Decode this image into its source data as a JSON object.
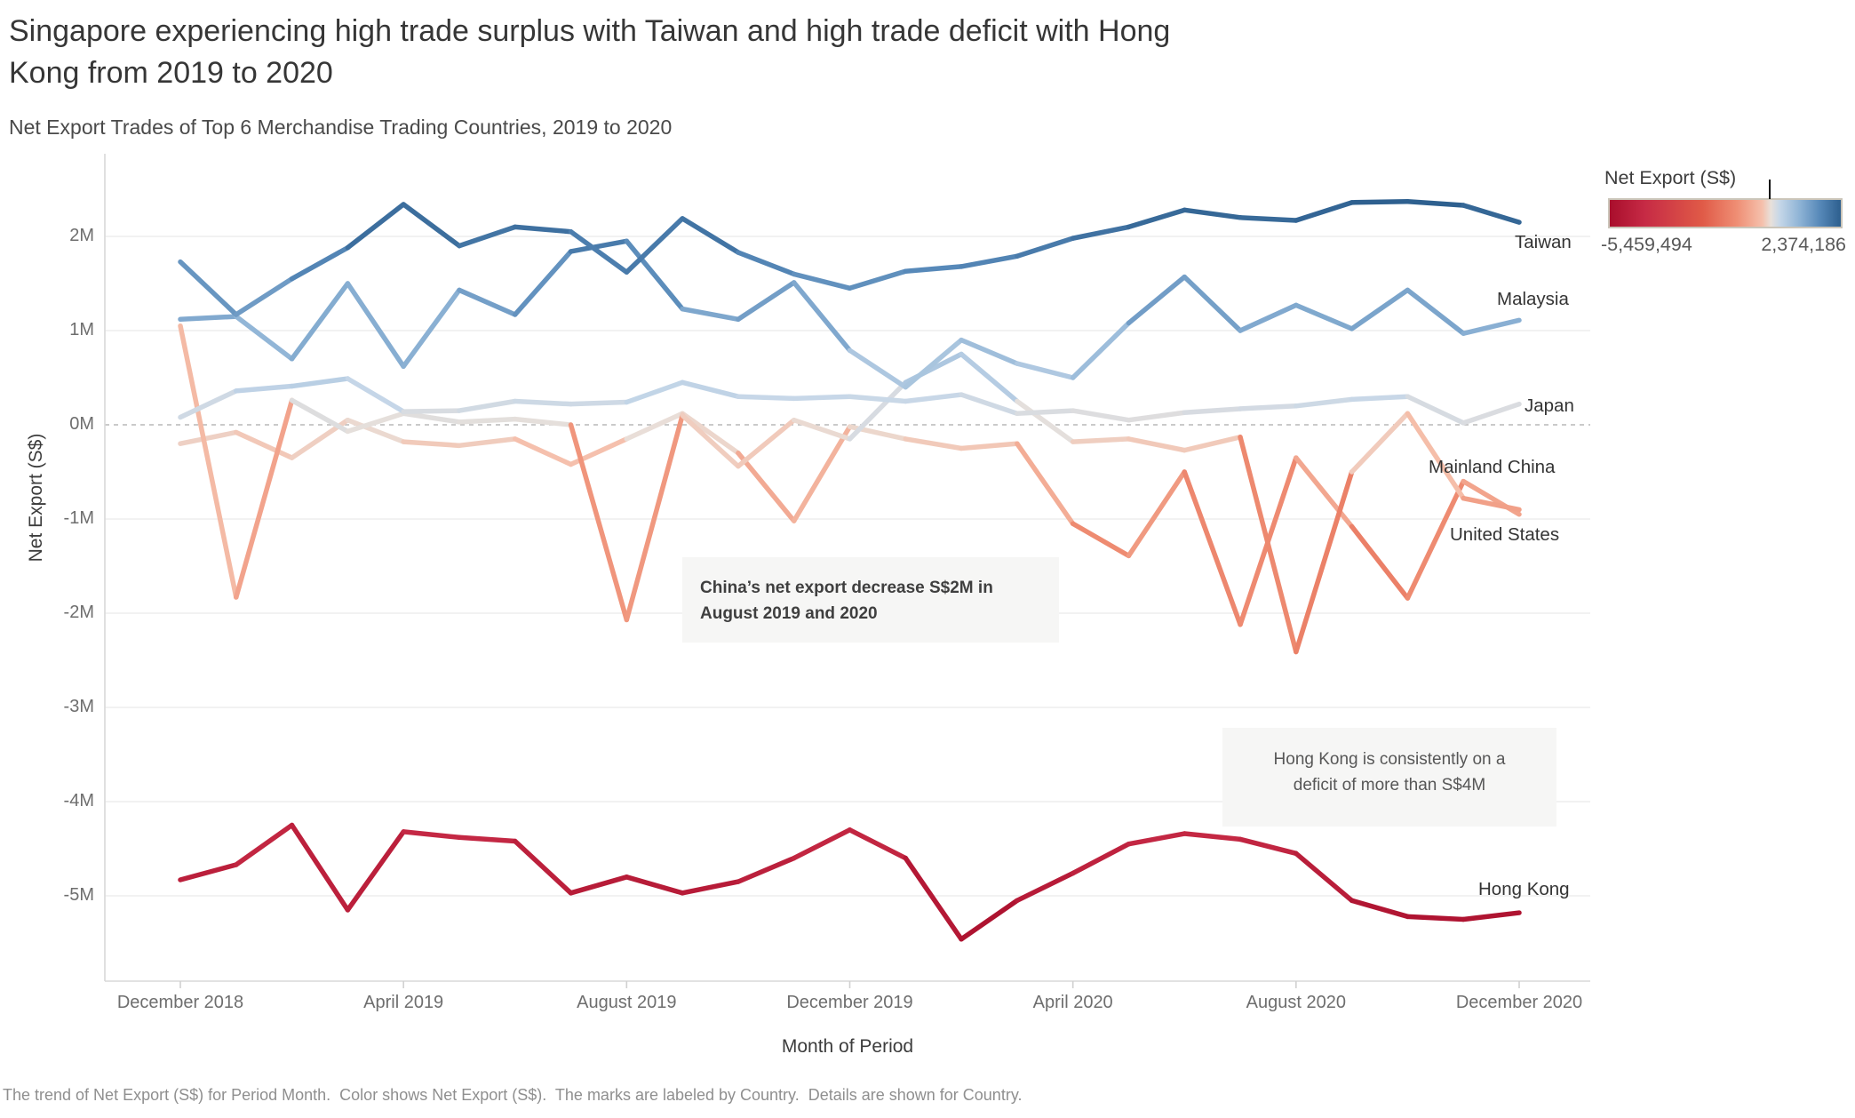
{
  "legend": {
    "title": "Net Export (S$)",
    "min_label": "-5,459,494",
    "max_label": "2,374,186"
  },
  "annotations": {
    "china": {
      "line1": "China’s net export decrease S$2M in",
      "line2": "August 2019 and 2020"
    },
    "hong_kong": {
      "line1": "Hong Kong is consistently on a",
      "line2": "deficit of more than S$4M"
    }
  },
  "caption": "The trend of Net Export (S$) for Period Month.  Color shows Net Export (S$).  The marks are labeled by Country.  Details are shown for Country.",
  "chart_data": {
    "type": "line",
    "title": "Singapore experiencing high trade surplus with Taiwan and high trade deficit with Hong Kong from 2019 to 2020",
    "subtitle": "Net Export Trades of Top 6 Merchandise Trading Countries, 2019 to 2020",
    "x_label": "Month of Period",
    "y_label": "Net Export (S$)",
    "units": "S$ millions",
    "x": [
      "December 2018",
      "January 2019",
      "February 2019",
      "March 2019",
      "April 2019",
      "May 2019",
      "June 2019",
      "July 2019",
      "August 2019",
      "September 2019",
      "October 2019",
      "November 2019",
      "December 2019",
      "January 2020",
      "February 2020",
      "March 2020",
      "April 2020",
      "May 2020",
      "June 2020",
      "July 2020",
      "August 2020",
      "September 2020",
      "October 2020",
      "November 2020",
      "December 2020"
    ],
    "x_tick_labels": [
      "December 2018",
      "April 2019",
      "August 2019",
      "December 2019",
      "April 2020",
      "August 2020",
      "December 2020"
    ],
    "x_tick_indices": [
      0,
      4,
      8,
      12,
      16,
      20,
      24
    ],
    "y_tick_labels": [
      "2M",
      "1M",
      "0M",
      "-1M",
      "-2M",
      "-3M",
      "-4M",
      "-5M"
    ],
    "y_tick_values": [
      2,
      1,
      0,
      -1,
      -2,
      -3,
      -4,
      -5
    ],
    "ylim": [
      -5.9,
      2.85
    ],
    "grid": "horizontal",
    "zero_line": "dashed",
    "legend_position": "top-right",
    "series": [
      {
        "name": "Hong Kong",
        "values": [
          -4.83,
          -4.67,
          -4.25,
          -5.15,
          -4.32,
          -4.38,
          -4.42,
          -4.97,
          -4.8,
          -4.97,
          -4.85,
          -4.6,
          -4.3,
          -4.6,
          -5.46,
          -5.05,
          -4.76,
          -4.45,
          -4.34,
          -4.4,
          -4.55,
          -5.05,
          -5.22,
          -5.25,
          -5.18
        ]
      },
      {
        "name": "United States",
        "values": [
          -0.2,
          -0.08,
          -0.35,
          0.05,
          -0.18,
          -0.22,
          -0.15,
          -0.42,
          -0.15,
          0.12,
          -0.3,
          -1.02,
          -0.02,
          -0.15,
          -0.25,
          -0.2,
          -1.05,
          -1.39,
          -0.5,
          -2.12,
          -0.35,
          -1.08,
          -1.84,
          -0.6,
          -0.95
        ]
      },
      {
        "name": "Mainland China",
        "values": [
          1.05,
          -1.83,
          0.26,
          -0.07,
          0.12,
          0.03,
          0.06,
          0.0,
          -2.07,
          0.1,
          -0.44,
          0.05,
          -0.15,
          0.45,
          0.75,
          0.25,
          -0.18,
          -0.15,
          -0.27,
          -0.13,
          -2.41,
          -0.5,
          0.12,
          -0.78,
          -0.9
        ]
      },
      {
        "name": "Japan",
        "values": [
          0.08,
          0.36,
          0.41,
          0.49,
          0.14,
          0.15,
          0.25,
          0.22,
          0.24,
          0.45,
          0.3,
          0.28,
          0.3,
          0.25,
          0.32,
          0.12,
          0.15,
          0.05,
          0.13,
          0.17,
          0.2,
          0.27,
          0.3,
          0.02,
          0.22
        ]
      },
      {
        "name": "Malaysia",
        "values": [
          1.12,
          1.15,
          0.7,
          1.5,
          0.62,
          1.43,
          1.17,
          1.84,
          1.95,
          1.23,
          1.12,
          1.51,
          0.79,
          0.4,
          0.9,
          0.65,
          0.5,
          1.08,
          1.57,
          1.0,
          1.27,
          1.02,
          1.43,
          0.97,
          1.11
        ]
      },
      {
        "name": "Taiwan",
        "values": [
          1.73,
          1.17,
          1.55,
          1.88,
          2.34,
          1.9,
          2.1,
          2.05,
          1.62,
          2.19,
          1.83,
          1.6,
          1.45,
          1.63,
          1.68,
          1.79,
          1.98,
          2.1,
          2.28,
          2.2,
          2.17,
          2.36,
          2.37,
          2.33,
          2.15
        ]
      }
    ],
    "color_scale": {
      "type": "diverging-red-blue",
      "domain_min": -5459494,
      "domain_max": 2374186,
      "legend_tick_value": 0,
      "stops": [
        [
          0.0,
          "#a90e2c"
        ],
        [
          0.15,
          "#c62a45"
        ],
        [
          0.4,
          "#e05a47"
        ],
        [
          0.55,
          "#ef8e74"
        ],
        [
          0.66,
          "#f5c0ac"
        ],
        [
          0.697,
          "#e8e0da"
        ],
        [
          0.735,
          "#c6d7e8"
        ],
        [
          0.82,
          "#8fb4d6"
        ],
        [
          0.91,
          "#5688b8"
        ],
        [
          1.0,
          "#2d5f8e"
        ]
      ]
    }
  }
}
